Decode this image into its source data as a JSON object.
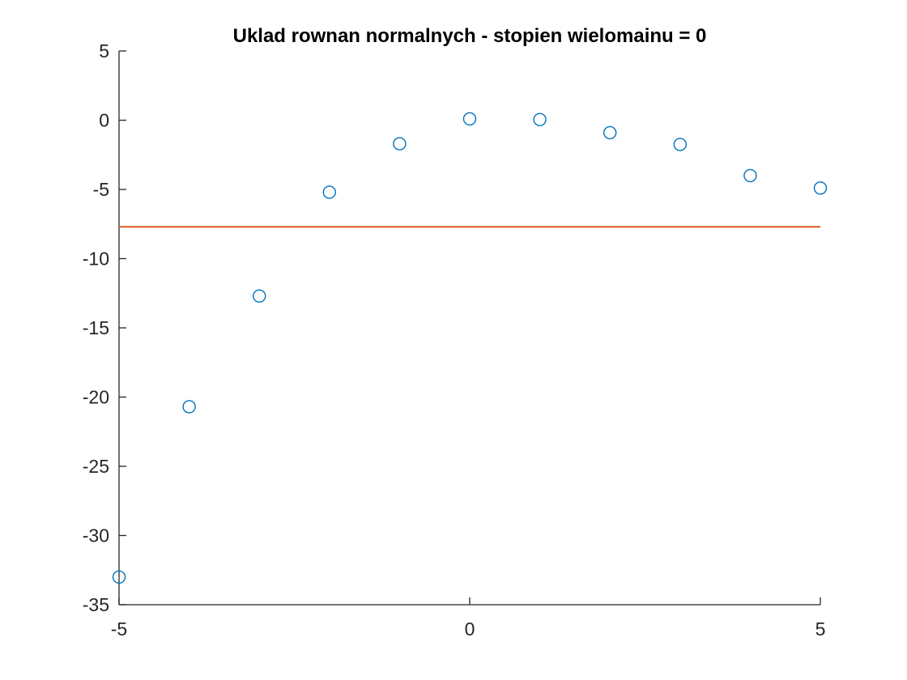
{
  "chart_data": {
    "type": "scatter",
    "title": "Uklad rownan normalnych - stopien wielomainu = 0",
    "xlabel": "",
    "ylabel": "",
    "xlim": [
      -5,
      5
    ],
    "ylim": [
      -35,
      5
    ],
    "grid": false,
    "box": false,
    "xticks": [
      -5,
      0,
      5
    ],
    "yticks": [
      5,
      0,
      -5,
      -10,
      -15,
      -20,
      -25,
      -30,
      -35
    ],
    "series": [
      {
        "kind": "points",
        "marker": "circle-open",
        "color": "#0072BD",
        "x": [
          -5,
          -4,
          -3,
          -2,
          -1,
          0,
          1,
          2,
          3,
          4,
          5
        ],
        "y": [
          -33,
          -20.7,
          -12.7,
          -5.2,
          -1.7,
          0.1,
          0.05,
          -0.9,
          -1.75,
          -4,
          -4.9
        ]
      },
      {
        "kind": "line",
        "color": "#D95319",
        "x": [
          -5,
          5
        ],
        "y": [
          -7.7,
          -7.7
        ]
      }
    ]
  }
}
